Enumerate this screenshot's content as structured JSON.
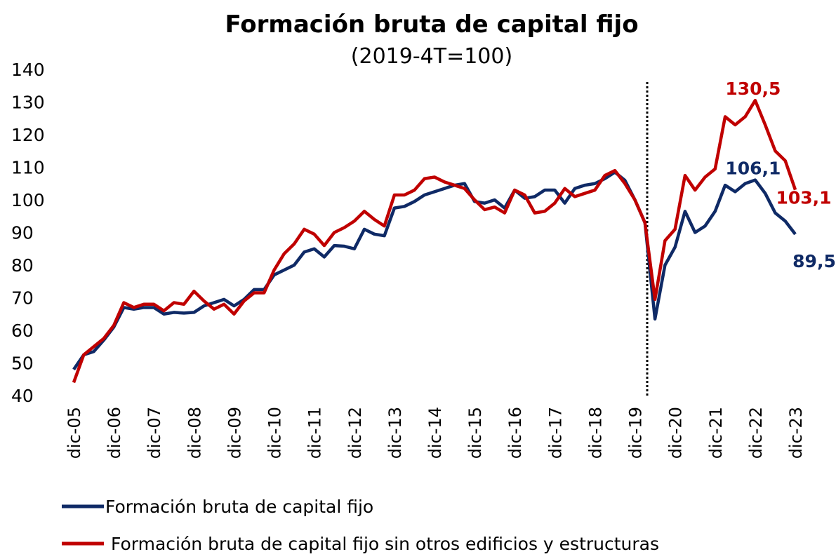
{
  "chart_data": {
    "type": "line",
    "title": "Formación bruta de capital fijo",
    "subtitle": "(2019-4T=100)",
    "categories": [
      "dic-05",
      null,
      null,
      null,
      "dic-06",
      null,
      null,
      null,
      "dic-07",
      null,
      null,
      null,
      "dic-08",
      null,
      null,
      null,
      "dic-09",
      null,
      null,
      null,
      "dic-10",
      null,
      null,
      null,
      "dic-11",
      null,
      null,
      null,
      "dic-12",
      null,
      null,
      null,
      "dic-13",
      null,
      null,
      null,
      "dic-14",
      null,
      null,
      null,
      "dic-15",
      null,
      null,
      null,
      "dic-16",
      null,
      null,
      null,
      "dic-17",
      null,
      null,
      null,
      "dic-18",
      null,
      null,
      null,
      "dic-19",
      null,
      null,
      null,
      "dic-20",
      null,
      null,
      null,
      "dic-21",
      null,
      null,
      null,
      "dic-22",
      null,
      null,
      null,
      "dic-23"
    ],
    "series": [
      {
        "name": "Formación bruta de capital fijo",
        "color": "#0f2a66",
        "values": [
          48,
          52.5,
          53.5,
          57,
          61,
          67,
          66.5,
          67,
          67,
          65,
          65.5,
          65.3,
          65.5,
          67.5,
          68.5,
          69.5,
          67.5,
          69.5,
          72.5,
          72.5,
          77,
          78.5,
          80,
          84,
          85,
          82.5,
          86,
          85.8,
          85,
          91,
          89.5,
          89,
          97.5,
          98,
          99.5,
          101.5,
          102.5,
          103.5,
          104.5,
          105,
          99.5,
          99,
          100,
          97.5,
          103,
          100.5,
          101,
          103,
          103,
          99,
          103.5,
          104.5,
          105,
          106.5,
          108.5,
          106,
          100,
          93,
          63.5,
          80,
          85.5,
          96.5,
          90,
          92,
          96.5,
          104.5,
          102.5,
          105,
          106.1,
          102,
          96,
          93.5,
          89.5
        ],
        "value_labels": [
          null,
          null,
          null,
          null,
          null,
          null,
          null,
          null,
          null,
          null,
          null,
          null,
          null,
          null,
          null,
          null,
          null,
          null,
          null,
          null,
          null,
          null,
          null,
          null,
          null,
          null,
          null,
          null,
          null,
          null,
          null,
          null,
          null,
          null,
          null,
          null,
          null,
          null,
          null,
          null,
          null,
          null,
          null,
          null,
          null,
          null,
          null,
          null,
          null,
          null,
          null,
          null,
          null,
          null,
          null,
          null,
          null,
          null,
          null,
          null,
          null,
          null,
          null,
          null,
          null,
          null,
          null,
          null,
          "106,1",
          null,
          null,
          null,
          "89,5"
        ]
      },
      {
        "name": "Formación bruta de capital fijo sin otros edificios y estructuras",
        "color": "#c00000",
        "values": [
          44,
          52.5,
          55,
          57.5,
          61.5,
          68.5,
          67,
          68,
          68,
          66,
          68.5,
          68,
          72,
          69,
          66.5,
          68,
          65,
          69,
          71.5,
          71.5,
          78.5,
          83.5,
          86.5,
          91,
          89.5,
          86,
          90,
          91.5,
          93.5,
          96.5,
          94,
          92,
          101.5,
          101.5,
          103,
          106.5,
          107,
          105.5,
          104.5,
          103.5,
          100,
          97,
          97.8,
          96,
          103,
          101.5,
          96,
          96.5,
          99,
          103.5,
          101,
          102,
          103,
          107.5,
          109,
          105,
          100,
          93,
          69.5,
          87.5,
          91,
          107.5,
          103,
          107,
          109.5,
          125.5,
          123,
          125.5,
          130.5,
          123,
          115,
          112,
          103.1
        ],
        "value_labels": [
          null,
          null,
          null,
          null,
          null,
          null,
          null,
          null,
          null,
          null,
          null,
          null,
          null,
          null,
          null,
          null,
          null,
          null,
          null,
          null,
          null,
          null,
          null,
          null,
          null,
          null,
          null,
          null,
          null,
          null,
          null,
          null,
          null,
          null,
          null,
          null,
          null,
          null,
          null,
          null,
          null,
          null,
          null,
          null,
          null,
          null,
          null,
          null,
          null,
          null,
          null,
          null,
          null,
          null,
          null,
          null,
          null,
          null,
          null,
          null,
          null,
          null,
          null,
          null,
          null,
          null,
          null,
          null,
          "130,5",
          null,
          null,
          null,
          "103,1"
        ]
      }
    ],
    "ylim": [
      40,
      140
    ],
    "yticks": [
      40,
      50,
      60,
      70,
      80,
      90,
      100,
      110,
      120,
      130,
      140
    ],
    "grid": false
  }
}
